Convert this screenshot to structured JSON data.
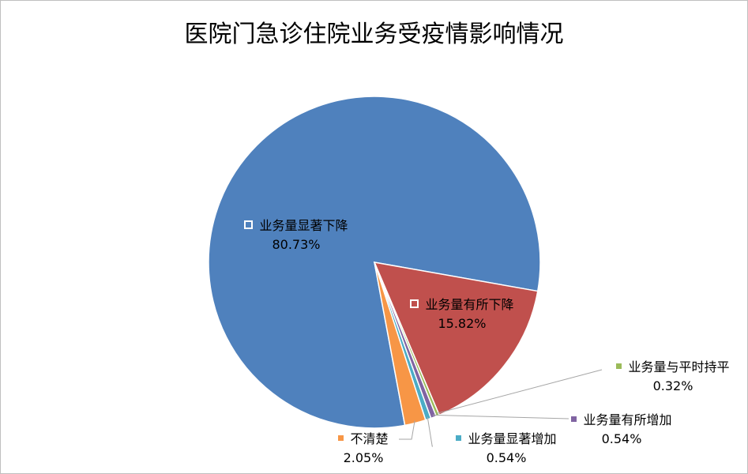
{
  "chart_data": {
    "type": "pie",
    "title": "医院门急诊住院业务受疫情影响情况",
    "categories": [
      "业务量显著下降",
      "业务量有所下降",
      "业务量与平时持平",
      "业务量有所增加",
      "业务量显著增加",
      "不清楚"
    ],
    "values": [
      80.73,
      15.82,
      0.32,
      0.54,
      0.54,
      2.05
    ],
    "value_labels": [
      "80.73%",
      "15.82%",
      "0.32%",
      "0.54%",
      "0.54%",
      "2.05%"
    ],
    "colors": [
      "#4f81bd",
      "#c0504d",
      "#9bbb59",
      "#8064a2",
      "#4bacc6",
      "#f79646"
    ]
  }
}
